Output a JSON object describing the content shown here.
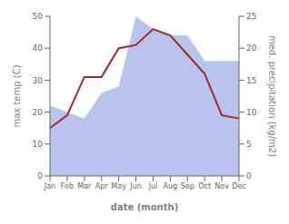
{
  "chart_data": {
    "type": "line",
    "categories": [
      "Jan",
      "Feb",
      "Mar",
      "Apr",
      "May",
      "Jun",
      "Jul",
      "Aug",
      "Sep",
      "Oct",
      "Nov",
      "Dec"
    ],
    "series": [
      {
        "type": "area",
        "axis": "y2",
        "color": "#b8c4ee",
        "values": [
          11,
          10,
          9,
          13,
          14,
          25,
          23,
          22,
          22,
          18,
          18,
          18
        ]
      },
      {
        "type": "line",
        "color": "#9e2a2a",
        "values": [
          15,
          19,
          31,
          31,
          40,
          41,
          46,
          44,
          38,
          32,
          19,
          18
        ]
      }
    ],
    "xlabel": "date (month)",
    "ylabel": "max temp (C)",
    "y2label": "med. precipitation (kg/m2)",
    "ylim": [
      0,
      50
    ],
    "yticks": [
      0,
      10,
      20,
      30,
      40,
      50
    ],
    "y2lim": [
      0,
      25
    ],
    "y2ticks": [
      0,
      5,
      10,
      15,
      20,
      25
    ]
  }
}
